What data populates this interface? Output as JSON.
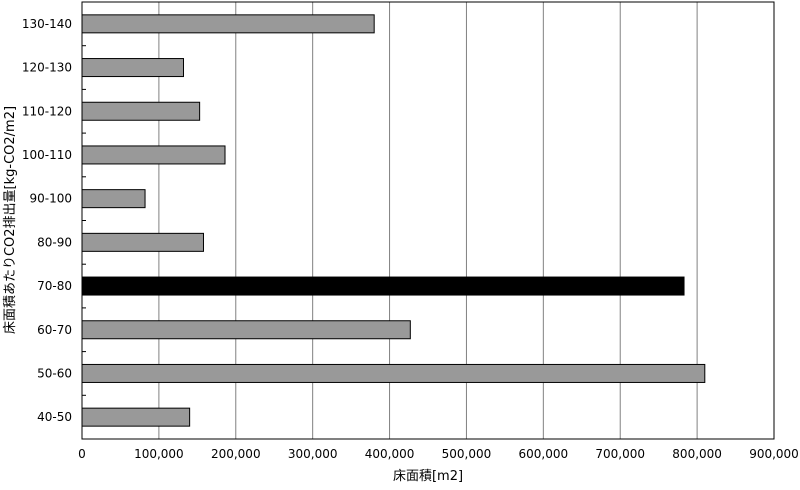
{
  "chart_data": {
    "type": "bar",
    "orientation": "horizontal",
    "xlabel": "床面積[m2]",
    "ylabel": "床面積あたりCO2排出量[kg-CO2/m2]",
    "categories": [
      "40-50",
      "50-60",
      "60-70",
      "70-80",
      "80-90",
      "90-100",
      "100-110",
      "110-120",
      "120-130",
      "130-140"
    ],
    "values": [
      140000,
      810000,
      427000,
      783000,
      158000,
      82000,
      186000,
      153000,
      132000,
      380000
    ],
    "highlight_index": 3,
    "xlim": [
      0,
      900000
    ],
    "xticks": [
      "0",
      "100,000",
      "200,000",
      "300,000",
      "400,000",
      "500,000",
      "600,000",
      "700,000",
      "800,000",
      "900,000"
    ],
    "grid": "vertical",
    "legend": "none",
    "colors": {
      "bar": "#999999",
      "highlight": "#000000",
      "grid": "#808080",
      "frame": "#000000"
    }
  }
}
